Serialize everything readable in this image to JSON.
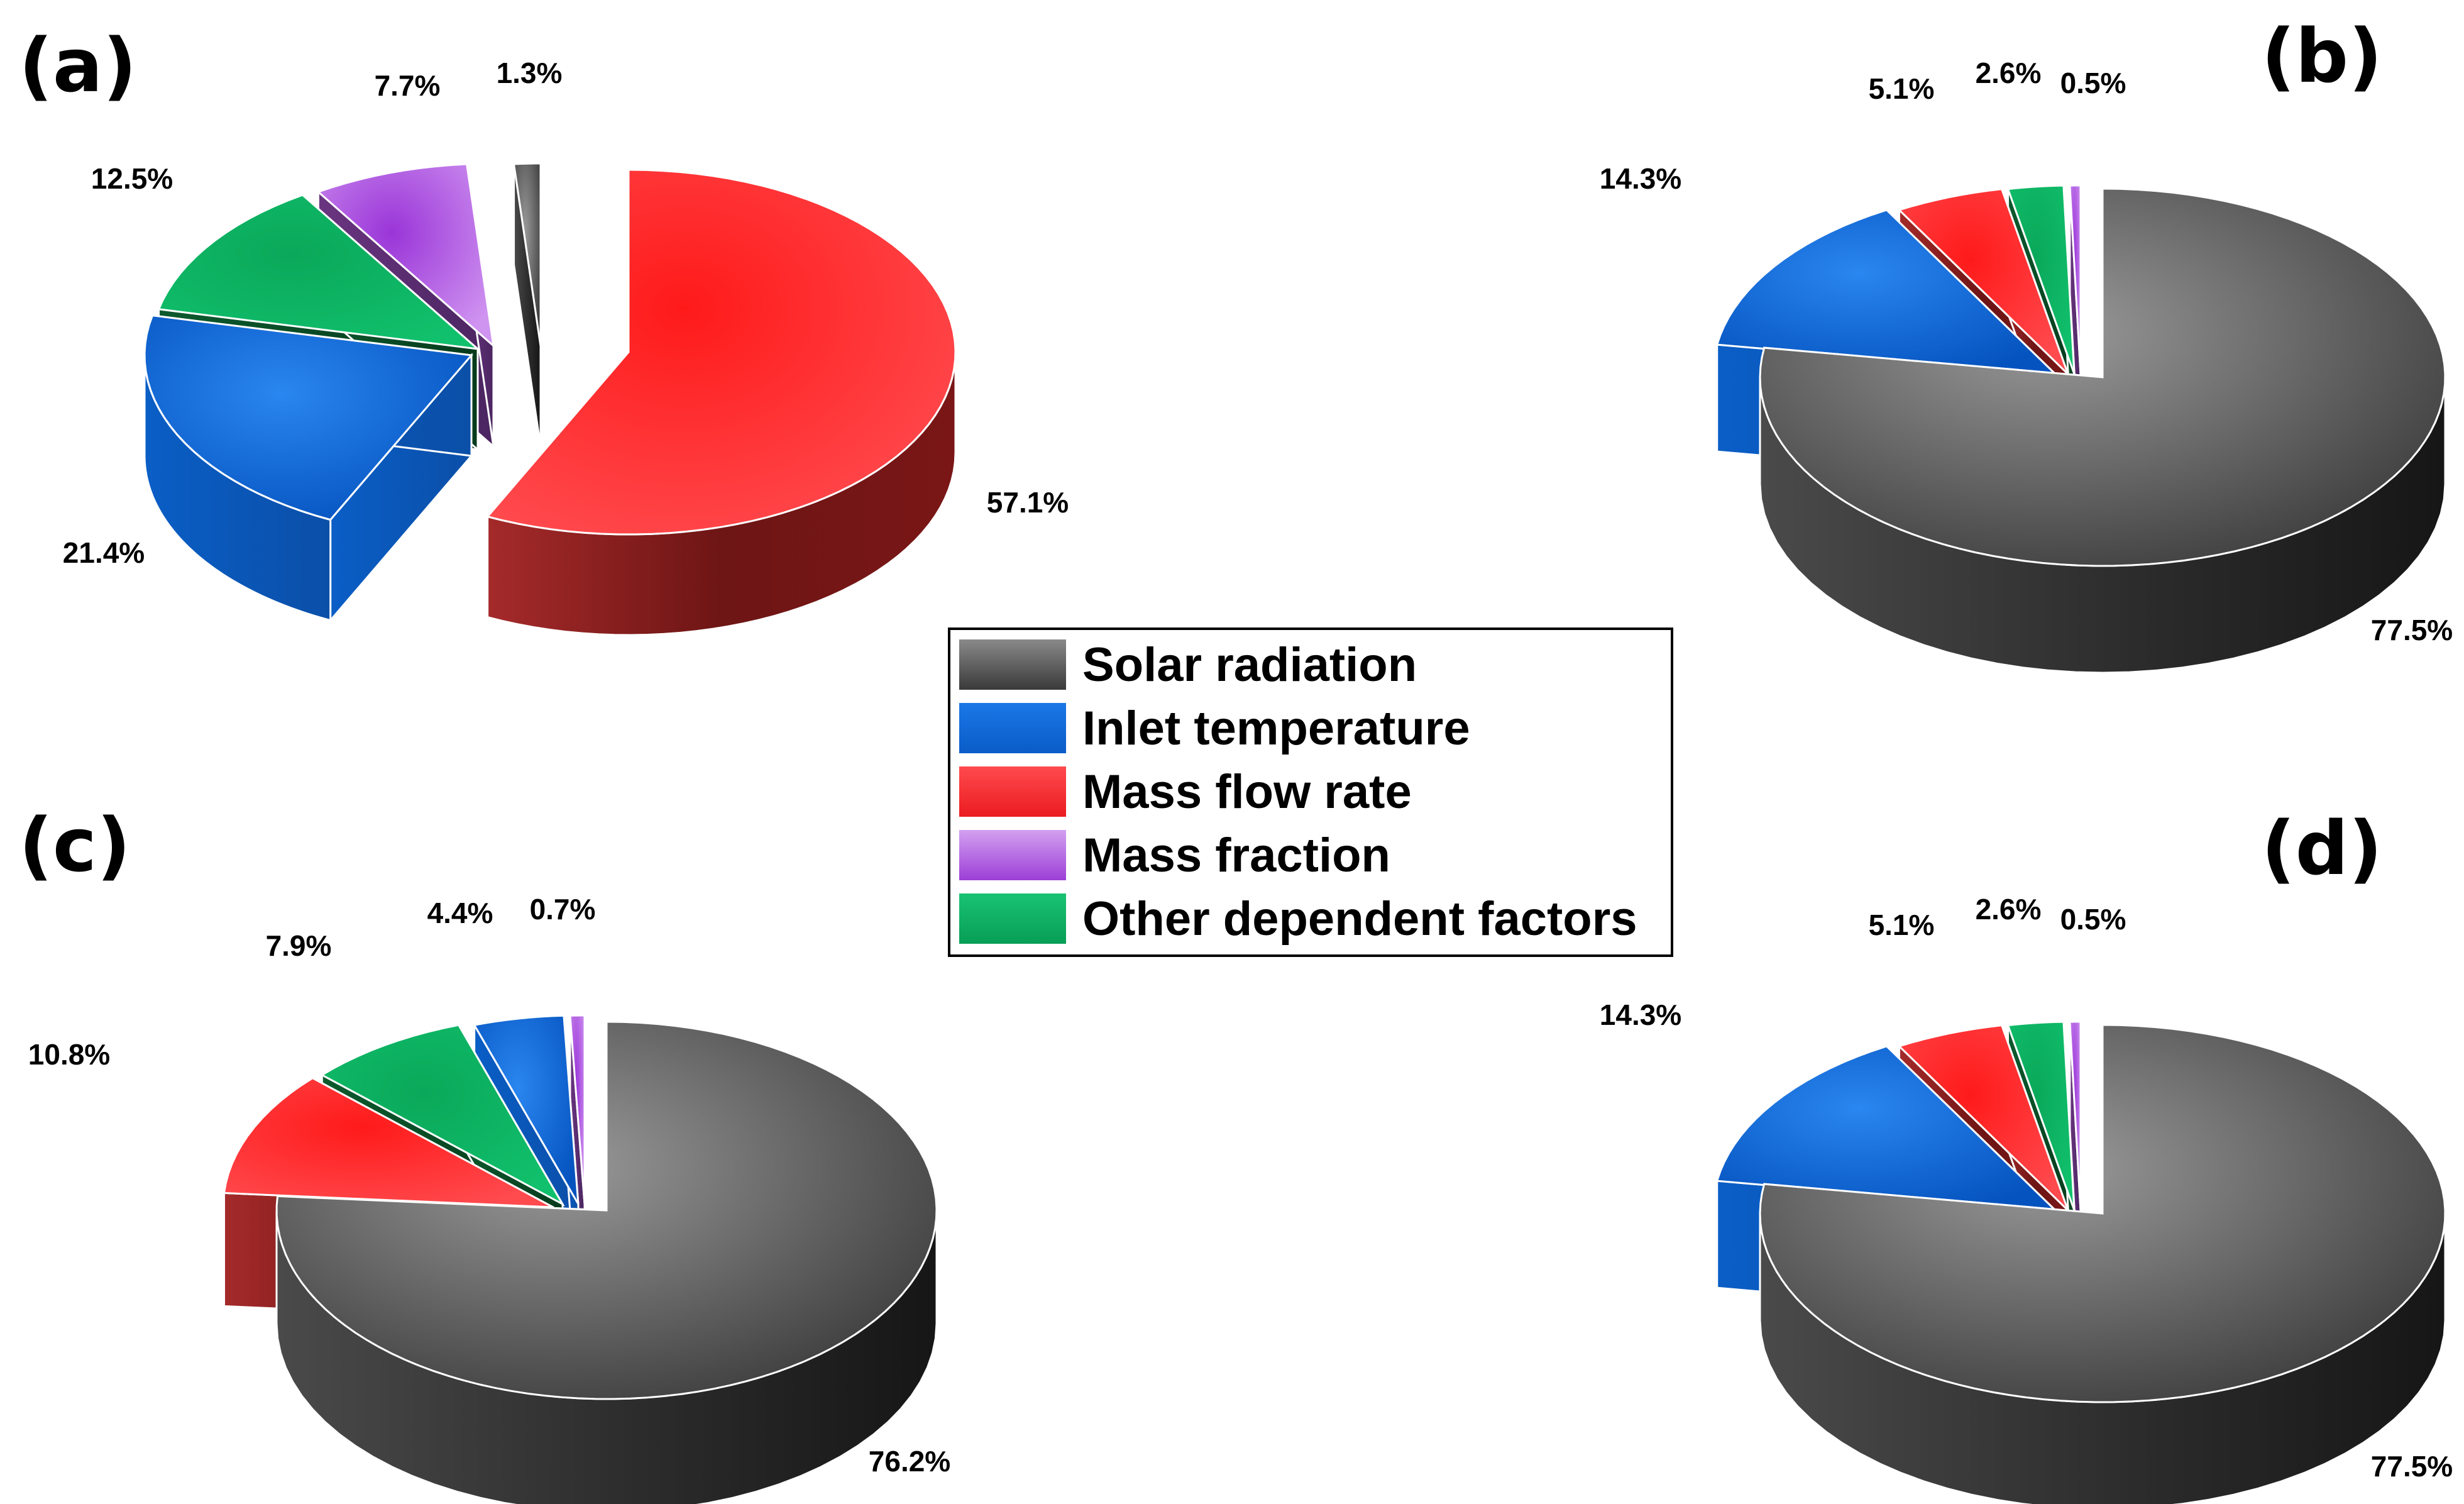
{
  "chart_data": {
    "type": "pie",
    "style": "exploded-3d-pie",
    "categories": [
      "Solar radiation",
      "Inlet temperature",
      "Mass flow rate",
      "Mass fraction",
      "Other dependent factors"
    ],
    "colors": {
      "Solar radiation": "#6b6b6b",
      "Inlet temperature": "#0a63d8",
      "Mass flow rate": "#f2252a",
      "Mass fraction": "#b45fe2",
      "Other dependent factors": "#0bb160"
    },
    "legend": {
      "placement": "center",
      "entries": [
        "Solar radiation",
        "Inlet temperature",
        "Mass flow rate",
        "Mass fraction",
        "Other dependent factors"
      ]
    },
    "panels": [
      {
        "panel": "(a)",
        "slices": [
          {
            "category": "Mass flow rate",
            "value": 57.1,
            "label": "57.1%"
          },
          {
            "category": "Inlet temperature",
            "value": 21.4,
            "label": "21.4%"
          },
          {
            "category": "Other dependent factors",
            "value": 12.5,
            "label": "12.5%"
          },
          {
            "category": "Mass fraction",
            "value": 7.7,
            "label": "7.7%"
          },
          {
            "category": "Solar radiation",
            "value": 1.3,
            "label": "1.3%"
          }
        ]
      },
      {
        "panel": "(b)",
        "slices": [
          {
            "category": "Solar radiation",
            "value": 77.5,
            "label": "77.5%"
          },
          {
            "category": "Inlet temperature",
            "value": 14.3,
            "label": "14.3%"
          },
          {
            "category": "Mass flow rate",
            "value": 5.1,
            "label": "5.1%"
          },
          {
            "category": "Other dependent factors",
            "value": 2.6,
            "label": "2.6%"
          },
          {
            "category": "Mass fraction",
            "value": 0.5,
            "label": "0.5%"
          }
        ]
      },
      {
        "panel": "(c)",
        "slices": [
          {
            "category": "Solar radiation",
            "value": 76.2,
            "label": "76.2%"
          },
          {
            "category": "Mass flow rate",
            "value": 10.8,
            "label": "10.8%"
          },
          {
            "category": "Other dependent factors",
            "value": 7.9,
            "label": "7.9%"
          },
          {
            "category": "Inlet temperature",
            "value": 4.4,
            "label": "4.4%"
          },
          {
            "category": "Mass fraction",
            "value": 0.7,
            "label": "0.7%"
          }
        ]
      },
      {
        "panel": "(d)",
        "slices": [
          {
            "category": "Solar radiation",
            "value": 77.5,
            "label": "77.5%"
          },
          {
            "category": "Inlet temperature",
            "value": 14.3,
            "label": "14.3%"
          },
          {
            "category": "Mass flow rate",
            "value": 5.1,
            "label": "5.1%"
          },
          {
            "category": "Other dependent factors",
            "value": 2.6,
            "label": "2.6%"
          },
          {
            "category": "Mass fraction",
            "value": 0.5,
            "label": "0.5%"
          }
        ]
      }
    ]
  }
}
